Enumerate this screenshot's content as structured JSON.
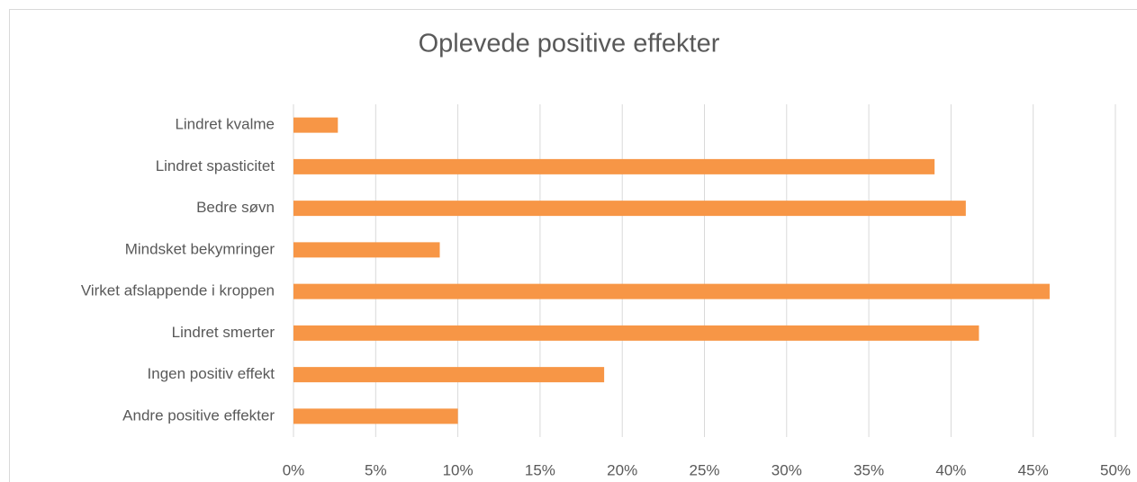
{
  "chart_data": {
    "type": "bar",
    "orientation": "horizontal",
    "title": "Oplevede positive effekter",
    "categories": [
      "Lindret kvalme",
      "Lindret spasticitet",
      "Bedre søvn",
      "Mindsket bekymringer",
      "Virket afslappende i kroppen",
      "Lindret smerter",
      "Ingen positiv effekt",
      "Andre positive effekter"
    ],
    "values": [
      2.7,
      39,
      40.9,
      8.9,
      46,
      41.7,
      18.9,
      10
    ],
    "color": "#f79646",
    "xlim": [
      0,
      50
    ],
    "xticks": [
      {
        "value": 0,
        "label": "0%"
      },
      {
        "value": 5,
        "label": "5%"
      },
      {
        "value": 10,
        "label": "10%"
      },
      {
        "value": 15,
        "label": "15%"
      },
      {
        "value": 20,
        "label": "20%"
      },
      {
        "value": 25,
        "label": "25%"
      },
      {
        "value": 30,
        "label": "30%"
      },
      {
        "value": 35,
        "label": "35%"
      },
      {
        "value": 40,
        "label": "40%"
      },
      {
        "value": 45,
        "label": "45%"
      },
      {
        "value": 50,
        "label": "50%"
      }
    ],
    "grid": true
  }
}
